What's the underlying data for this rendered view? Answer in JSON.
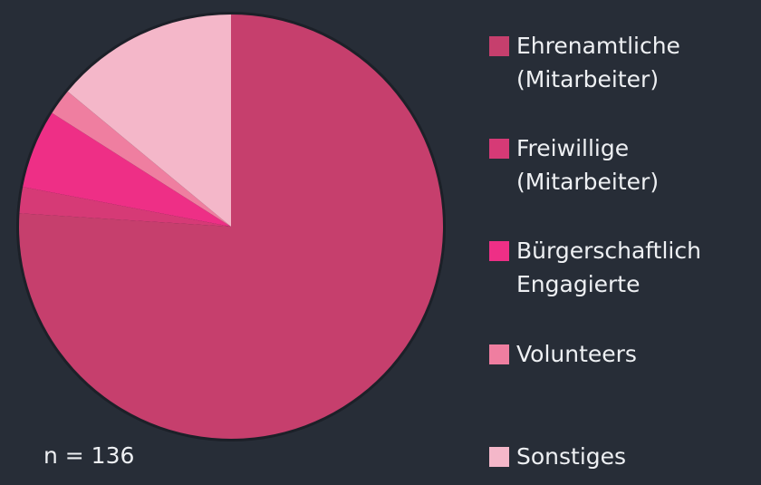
{
  "chart_data": {
    "type": "pie",
    "categories": [
      "Ehrenamtliche (Mitarbeiter)",
      "Freiwillige (Mitarbeiter)",
      "Bürgerschaftlich Engagierte",
      "Volunteers",
      "Sonstiges"
    ],
    "values": [
      76,
      2,
      6,
      2,
      14
    ],
    "colors": [
      "#c63f6d",
      "#d63a76",
      "#ee2f86",
      "#ef7ea0",
      "#f4b7c9"
    ],
    "note": "n = 136"
  }
}
